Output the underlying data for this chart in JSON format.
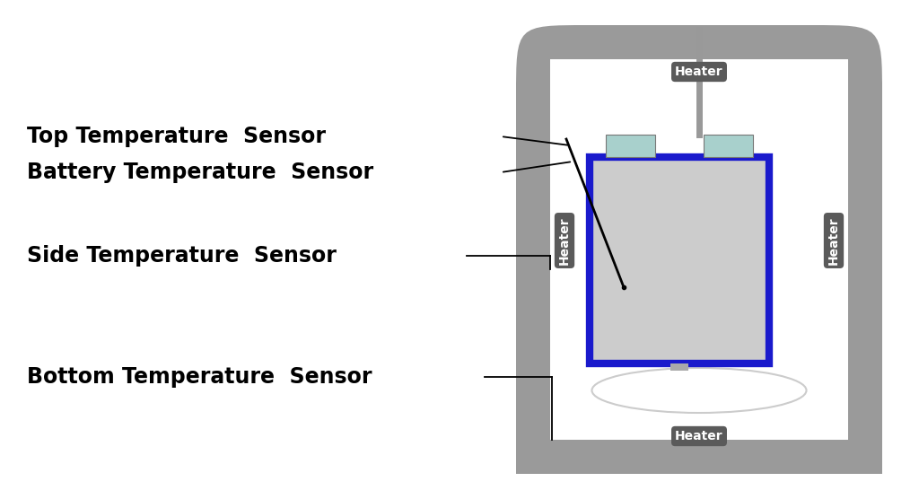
{
  "bg_color": "#ffffff",
  "outer_shell_color": "#9a9a9a",
  "inner_bg_color": "#ffffff",
  "battery_body_color": "#cccccc",
  "battery_border_color": "#1a1acc",
  "battery_terminal_color": "#a8d0cc",
  "heater_label_bg": "#5a5a5a",
  "heater_label_color": "#ffffff",
  "line_color": "#000000",
  "probe_color": "#999999",
  "dome_color": "#cccccc",
  "labels": {
    "top_sensor": "Top Temperature  Sensor",
    "battery_sensor": "Battery Temperature  Sensor",
    "side_sensor": "Side Temperature  Sensor",
    "bottom_sensor": "Bottom Temperature  Sensor"
  },
  "label_fontsize": 17,
  "heater_fontsize": 10,
  "figsize": [
    10.24,
    5.56
  ],
  "dpi": 100
}
